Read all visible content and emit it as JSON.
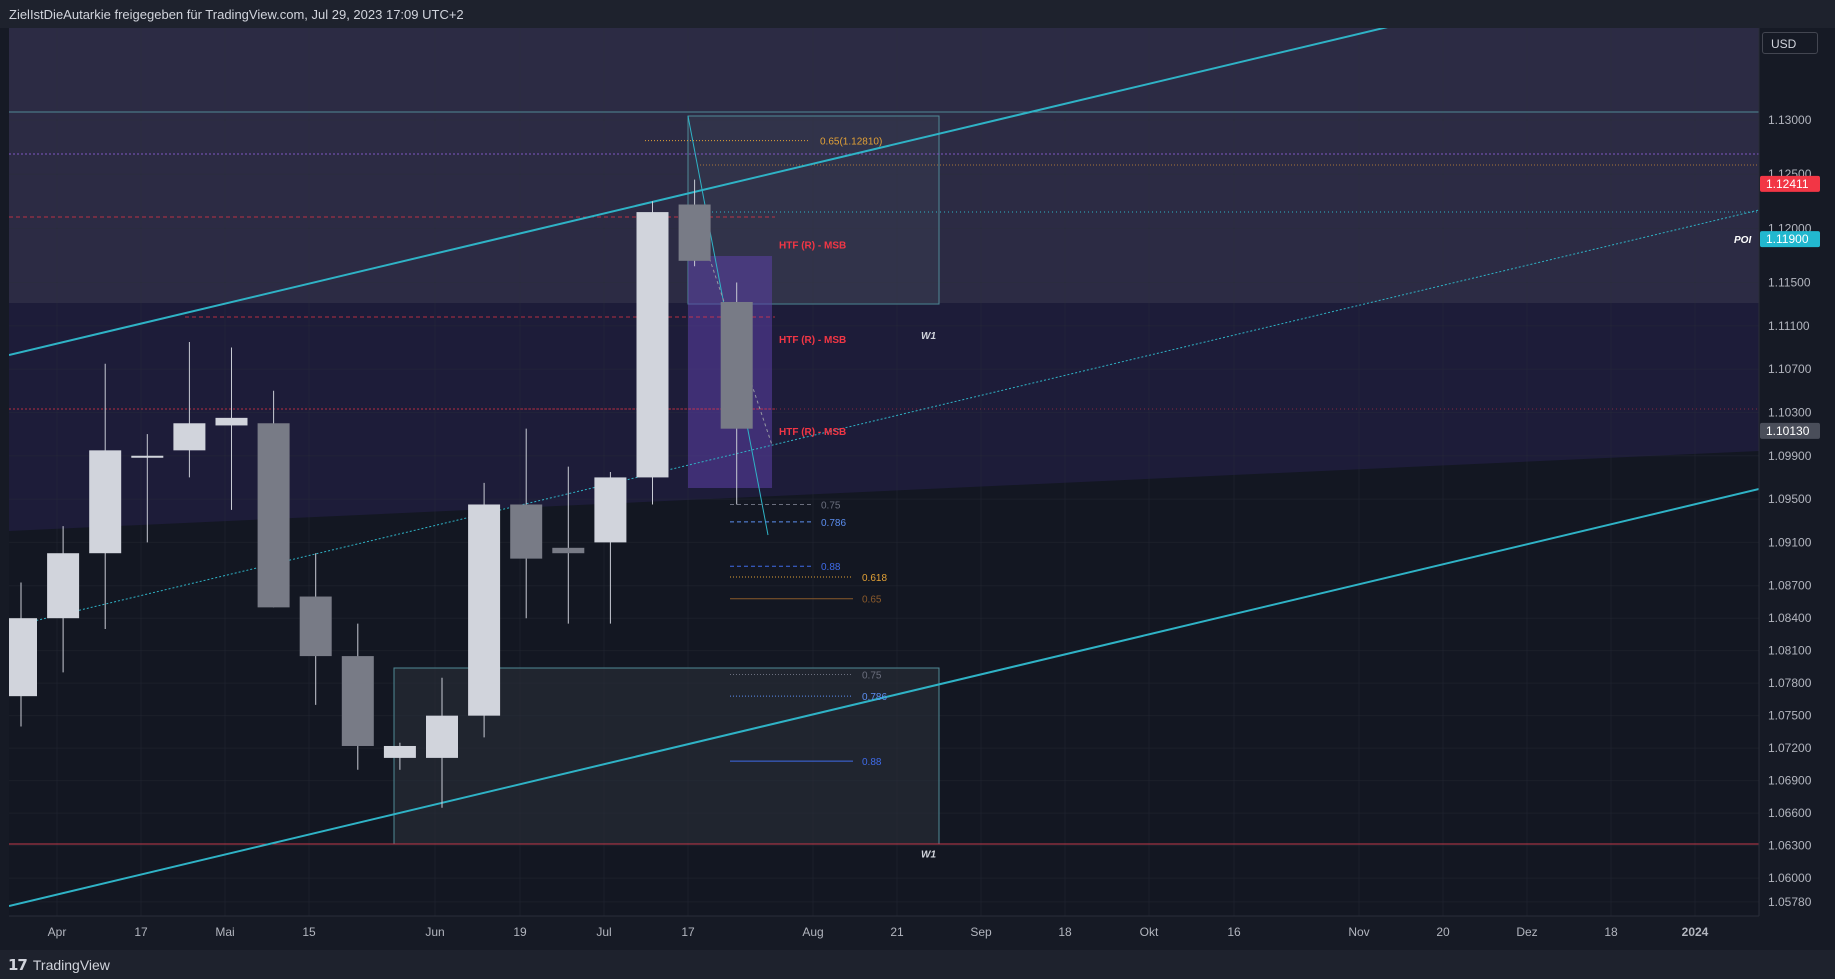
{
  "header": {
    "share_text": "ZielIstDieAutarkie freigegeben für TradingView.com, Jul 29, 2023 17:09 UTC+2"
  },
  "footer": {
    "brand": "TradingView"
  },
  "currency": "USD",
  "colors": {
    "background": "#131722",
    "text": "#d1d4dc",
    "axis_text": "#b2b5be",
    "up_candle": "#d1d4dc",
    "down_candle": "#787b86",
    "channel": "#2fb3c6",
    "msb": "#f23645",
    "fib_gray": "#6b6f7e",
    "fib_blue": "#3f7cf4",
    "fib_orange": "#e2a136"
  },
  "chart_data": {
    "type": "candlestick",
    "timeframe": "W1",
    "ylim": [
      1.0565,
      1.1385
    ],
    "y_ticks": [
      "1.13000",
      "1.12500",
      "1.12000",
      "1.11500",
      "1.11100",
      "1.10700",
      "1.10300",
      "1.09900",
      "1.09500",
      "1.09100",
      "1.08700",
      "1.08400",
      "1.08100",
      "1.07800",
      "1.07500",
      "1.07200",
      "1.06900",
      "1.06600",
      "1.06300",
      "1.06000",
      "1.05780"
    ],
    "x_ticks": [
      "Apr",
      "17",
      "Mai",
      "15",
      "Jun",
      "19",
      "Jul",
      "17",
      "Aug",
      "21",
      "Sep",
      "18",
      "Okt",
      "16",
      "Nov",
      "20",
      "Dez",
      "18",
      "2024"
    ],
    "price_labels": [
      {
        "value": "1.12411",
        "price": 1.12411,
        "color": "#f23645"
      },
      {
        "value": "1.11900",
        "price": 1.119,
        "color": "#22b8cf",
        "tag": "POI"
      },
      {
        "value": "1.10130",
        "price": 1.1013,
        "color": "#4a4e5a"
      }
    ],
    "candles": [
      {
        "date": "2023-03-20",
        "open": 1.0768,
        "high": 1.0873,
        "low": 1.074,
        "close": 1.084
      },
      {
        "date": "2023-03-27",
        "open": 1.084,
        "high": 1.0925,
        "low": 1.079,
        "close": 1.09
      },
      {
        "date": "2023-04-03",
        "open": 1.09,
        "high": 1.1075,
        "low": 1.083,
        "close": 1.0995
      },
      {
        "date": "2023-04-10",
        "open": 1.099,
        "high": 1.101,
        "low": 1.091,
        "close": 1.099
      },
      {
        "date": "2023-04-17",
        "open": 1.0995,
        "high": 1.1095,
        "low": 1.097,
        "close": 1.102
      },
      {
        "date": "2023-04-24",
        "open": 1.1018,
        "high": 1.109,
        "low": 1.094,
        "close": 1.1025
      },
      {
        "date": "2023-05-01",
        "open": 1.102,
        "high": 1.105,
        "low": 1.085,
        "close": 1.085
      },
      {
        "date": "2023-05-08",
        "open": 1.086,
        "high": 1.09,
        "low": 1.076,
        "close": 1.0805
      },
      {
        "date": "2023-05-15",
        "open": 1.0805,
        "high": 1.0835,
        "low": 1.07,
        "close": 1.0722
      },
      {
        "date": "2023-05-22",
        "open": 1.0711,
        "high": 1.0725,
        "low": 1.07,
        "close": 1.0722
      },
      {
        "date": "2023-05-29",
        "open": 1.0711,
        "high": 1.0785,
        "low": 1.0665,
        "close": 1.075
      },
      {
        "date": "2023-06-05",
        "open": 1.075,
        "high": 1.0965,
        "low": 1.073,
        "close": 1.0945
      },
      {
        "date": "2023-06-12",
        "open": 1.0945,
        "high": 1.1015,
        "low": 1.084,
        "close": 1.0895
      },
      {
        "date": "2023-06-19",
        "open": 1.0905,
        "high": 1.098,
        "low": 1.0835,
        "close": 1.09
      },
      {
        "date": "2023-06-26",
        "open": 1.091,
        "high": 1.0975,
        "low": 1.0835,
        "close": 1.097
      },
      {
        "date": "2023-07-03",
        "open": 1.097,
        "high": 1.1225,
        "low": 1.0945,
        "close": 1.1215
      },
      {
        "date": "2023-07-10",
        "open": 1.1222,
        "high": 1.1245,
        "low": 1.1165,
        "close": 1.117
      },
      {
        "date": "2023-07-17",
        "open": 1.1132,
        "high": 1.115,
        "low": 1.0945,
        "close": 1.1015
      }
    ],
    "annotations": [
      {
        "label": "HTF (R) - MSB",
        "price": 1.1185
      },
      {
        "label": "HTF (R) - MSB",
        "price": 1.1098
      },
      {
        "label": "HTF (R) - MSB",
        "price": 1.1013
      },
      {
        "label": "W1",
        "price": 1.1105
      },
      {
        "label": "W1",
        "price": 1.0632
      },
      {
        "label": "POI",
        "price": 1.119
      }
    ],
    "fib_levels": [
      {
        "label": "0.65(1.12810)",
        "price": 1.1281,
        "color": "#e2a136"
      },
      {
        "label": "0.75",
        "price": 1.0945,
        "color": "#6b6f7e"
      },
      {
        "label": "0.786",
        "price": 1.0929,
        "color": "#5b8ef0"
      },
      {
        "label": "0.88",
        "price": 1.0888,
        "color": "#3f6be8"
      },
      {
        "label": "0.618",
        "price": 1.0878,
        "color": "#e2a136"
      },
      {
        "label": "0.65",
        "price": 1.0858,
        "color": "#8a5a2b"
      },
      {
        "label": "0.75",
        "price": 1.0788,
        "color": "#6b6f7e"
      },
      {
        "label": "0.786",
        "price": 1.0768,
        "color": "#5b8ef0"
      },
      {
        "label": "0.88",
        "price": 1.0708,
        "color": "#3f6be8"
      }
    ]
  }
}
